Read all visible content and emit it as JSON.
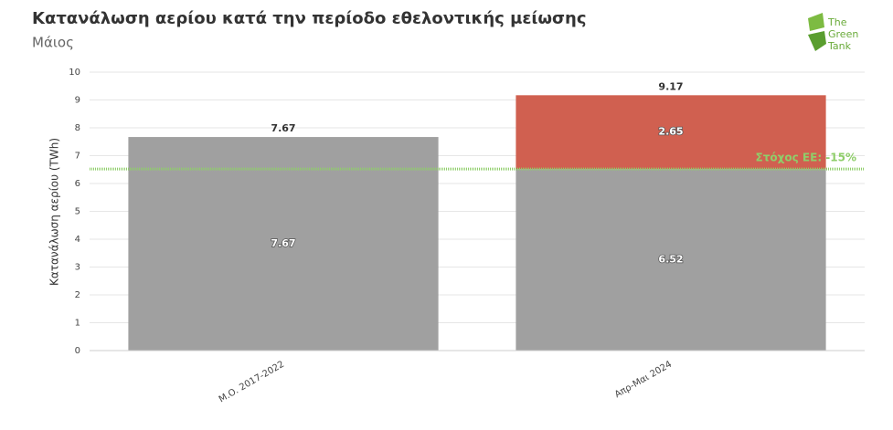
{
  "chart_data": {
    "type": "stacked_bar",
    "title": "Κατανάλωση αερίου κατά την περίοδο εθελοντικής μείωσης",
    "subtitle": "Μάιος",
    "y_label": "Κατανάλωση αερίου (TWh)",
    "categories": [
      "Μ.Ο. 2017-2022",
      "Απρ-Μαι 2024"
    ],
    "series": [
      {
        "color": "#a0a0a0",
        "values": [
          7.67,
          6.52
        ]
      },
      {
        "color": "#d06050",
        "values": [
          null,
          2.65
        ]
      }
    ],
    "totals": [
      7.67,
      9.17
    ],
    "target": {
      "value": 6.52,
      "label": "Στόχος ΕΕ: -15%",
      "color": "#8fce6a"
    },
    "ylim": [
      0,
      10
    ],
    "yticks": [
      0,
      1,
      2,
      3,
      4,
      5,
      6,
      7,
      8,
      9,
      10
    ],
    "grid": true
  },
  "logo": {
    "lines": [
      "The",
      "Green",
      "Tank"
    ]
  }
}
